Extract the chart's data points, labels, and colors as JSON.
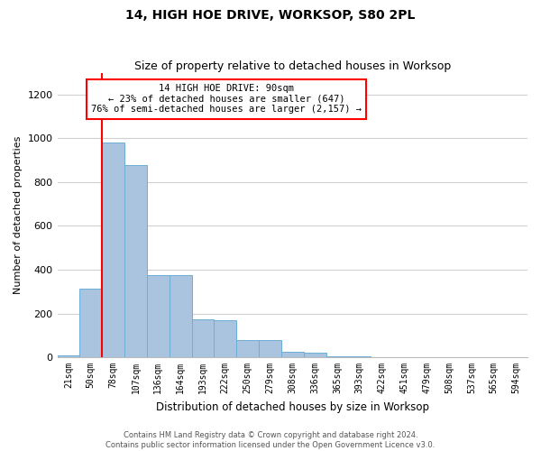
{
  "title": "14, HIGH HOE DRIVE, WORKSOP, S80 2PL",
  "subtitle": "Size of property relative to detached houses in Worksop",
  "xlabel": "Distribution of detached houses by size in Worksop",
  "ylabel": "Number of detached properties",
  "footer_line1": "Contains HM Land Registry data © Crown copyright and database right 2024.",
  "footer_line2": "Contains public sector information licensed under the Open Government Licence v3.0.",
  "annotation_line1": "14 HIGH HOE DRIVE: 90sqm",
  "annotation_line2": "← 23% of detached houses are smaller (647)",
  "annotation_line3": "76% of semi-detached houses are larger (2,157) →",
  "bar_labels": [
    "21sqm",
    "50sqm",
    "78sqm",
    "107sqm",
    "136sqm",
    "164sqm",
    "193sqm",
    "222sqm",
    "250sqm",
    "279sqm",
    "308sqm",
    "336sqm",
    "365sqm",
    "393sqm",
    "422sqm",
    "451sqm",
    "479sqm",
    "508sqm",
    "537sqm",
    "565sqm",
    "594sqm"
  ],
  "bar_values": [
    10,
    315,
    980,
    880,
    375,
    375,
    175,
    170,
    80,
    80,
    25,
    20,
    5,
    5,
    2,
    2,
    1,
    1,
    1,
    1,
    1
  ],
  "bar_color": "#aac4df",
  "bar_edge_color": "#6baed6",
  "red_line_index": 2,
  "ylim": [
    0,
    1300
  ],
  "yticks": [
    0,
    200,
    400,
    600,
    800,
    1000,
    1200
  ],
  "background_color": "#ffffff",
  "grid_color": "#d0d0d0"
}
